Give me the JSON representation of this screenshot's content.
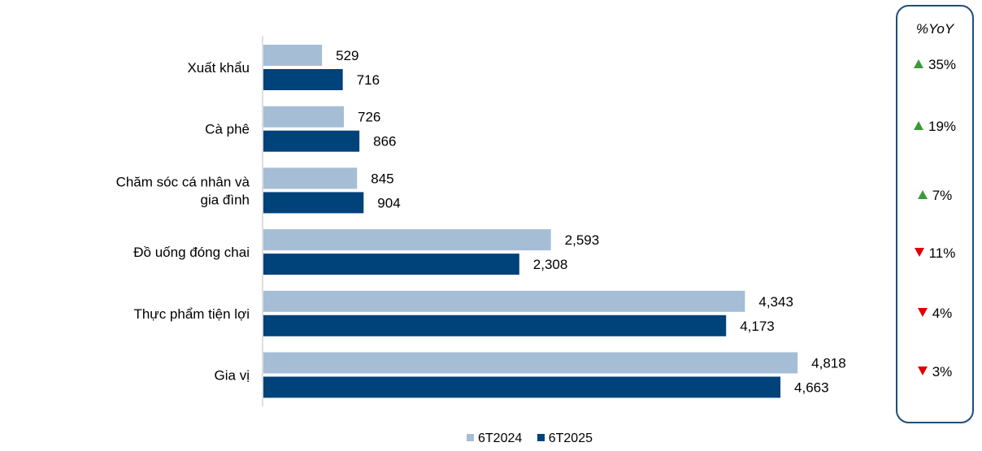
{
  "chart_data": {
    "type": "bar",
    "orientation": "horizontal",
    "categories": [
      "Xuất khẩu",
      "Cà phê",
      "Chăm sóc cá nhân và gia đình",
      "Đồ uống đóng chai",
      "Thực phẩm tiện lợi",
      "Gia vị"
    ],
    "category_lines": [
      [
        "Xuất khẩu"
      ],
      [
        "Cà phê"
      ],
      [
        "Chăm sóc cá nhân và",
        "gia đình"
      ],
      [
        "Đồ uống đóng chai"
      ],
      [
        "Thực phẩm tiện lợi"
      ],
      [
        "Gia vị"
      ]
    ],
    "series": [
      {
        "name": "6T2024",
        "color": "#a5bed6",
        "values": [
          529,
          726,
          845,
          2593,
          4343,
          4818
        ],
        "labels": [
          "529",
          "726",
          "845",
          "2,593",
          "4,343",
          "4,818"
        ]
      },
      {
        "name": "6T2025",
        "color": "#00427a",
        "values": [
          716,
          866,
          904,
          2308,
          4173,
          4663
        ],
        "labels": [
          "716",
          "866",
          "904",
          "2,308",
          "4,173",
          "4,663"
        ]
      }
    ],
    "xlim": [
      0,
      5000
    ],
    "legend_position": "bottom",
    "gridlines": false
  },
  "yoy": {
    "title": "%YoY",
    "items": [
      {
        "direction": "up",
        "value": "35%"
      },
      {
        "direction": "up",
        "value": "19%"
      },
      {
        "direction": "up",
        "value": "7%"
      },
      {
        "direction": "down",
        "value": "11%"
      },
      {
        "direction": "down",
        "value": "4%"
      },
      {
        "direction": "down",
        "value": "3%"
      }
    ]
  },
  "legend": {
    "item1": "6T2024",
    "item2": "6T2025"
  },
  "colors": {
    "up": "#3a9a3a",
    "down": "#e00000",
    "border": "#1f4e79"
  }
}
